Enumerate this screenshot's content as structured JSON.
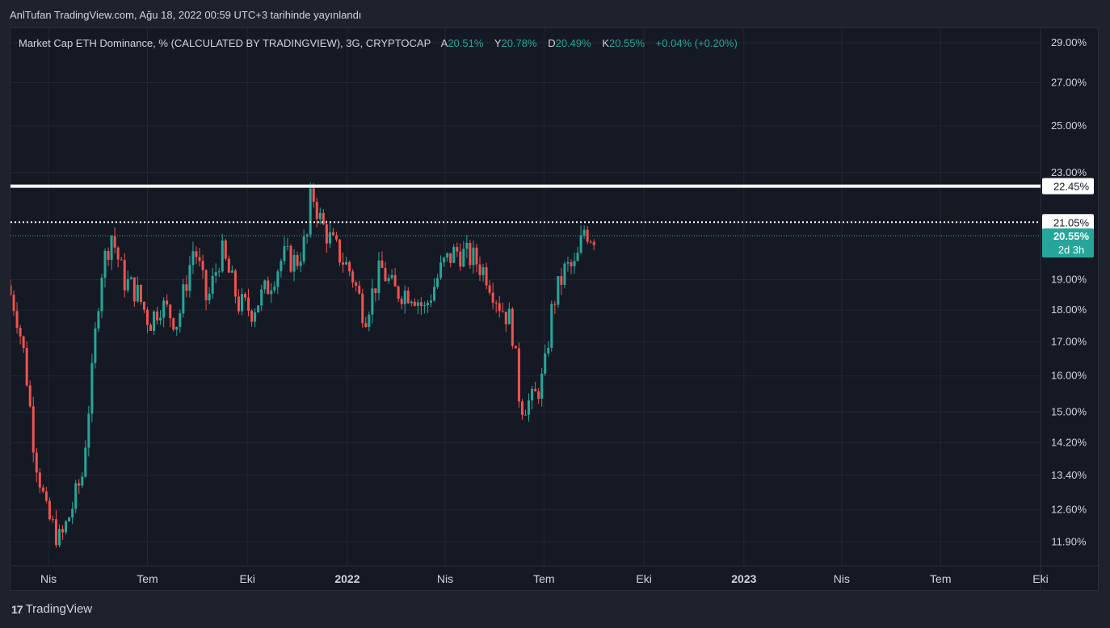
{
  "header": {
    "publish_text": "AnlTufan TradingView.com, Ağu 18, 2022 00:59 UTC+3 tarihinde yayınlandı"
  },
  "legend": {
    "symbol_text": "Market Cap ETH Dominance, % (CALCULATED BY TRADINGVIEW), 3G, CRYPTOCAP",
    "open_label": "A",
    "open_value": "20.51%",
    "high_label": "Y",
    "high_value": "20.78%",
    "low_label": "D",
    "low_value": "20.49%",
    "close_label": "K",
    "close_value": "20.55%",
    "change_text": "+0.04% (+0.20%)"
  },
  "footer": {
    "logo_text": "17",
    "brand_name": "TradingView"
  },
  "colors": {
    "up": "#26a69a",
    "down": "#ef5350",
    "background": "#151924",
    "grid": "#232734",
    "axis_text": "#d1d4dc",
    "price_label_bg": "#26a69a"
  },
  "chart_data": {
    "type": "candlestick",
    "symbol": "Market Cap ETH Dominance, % (CALCULATED BY TRADINGVIEW), 3G, CRYPTOCAP",
    "interval": "3G",
    "y_scale": "log",
    "grid": true,
    "ylim": [
      11.5,
      29.5
    ],
    "y_ticks": [
      "29.00%",
      "27.00%",
      "25.00%",
      "23.00%",
      "19.00%",
      "18.00%",
      "17.00%",
      "16.00%",
      "15.00%",
      "14.20%",
      "13.40%",
      "12.60%",
      "11.90%"
    ],
    "x_ticks": [
      "Nis",
      "Tem",
      "Eki",
      "2022",
      "Nis",
      "Tem",
      "Eki",
      "2023",
      "Nis",
      "Tem",
      "Eki"
    ],
    "x_ticks_bold": [
      "2022",
      "2023"
    ],
    "x_range": [
      "2021-02-25",
      "2023-10-01"
    ],
    "horizontal_lines": [
      {
        "value": 22.45,
        "label": "22.45%",
        "style": "solid"
      },
      {
        "value": 21.05,
        "label": "21.05%",
        "style": "dotted"
      }
    ],
    "last_price": {
      "value": 20.55,
      "label": "20.55%",
      "countdown": "2d 3h"
    },
    "anchors": [
      [
        "2021-02-25",
        18.8
      ],
      [
        "2021-03-05",
        18.0
      ],
      [
        "2021-03-13",
        16.5
      ],
      [
        "2021-03-22",
        14.0
      ],
      [
        "2021-04-02",
        12.5
      ],
      [
        "2021-04-15",
        11.9
      ],
      [
        "2021-04-25",
        12.6
      ],
      [
        "2021-05-05",
        13.4
      ],
      [
        "2021-05-14",
        16.0
      ],
      [
        "2021-05-22",
        19.2
      ],
      [
        "2021-06-01",
        20.6
      ],
      [
        "2021-06-12",
        19.0
      ],
      [
        "2021-06-24",
        18.6
      ],
      [
        "2021-07-06",
        17.6
      ],
      [
        "2021-07-16",
        18.2
      ],
      [
        "2021-08-01",
        17.6
      ],
      [
        "2021-08-16",
        20.2
      ],
      [
        "2021-08-28",
        18.2
      ],
      [
        "2021-09-10",
        20.0
      ],
      [
        "2021-09-26",
        18.2
      ],
      [
        "2021-10-08",
        18.0
      ],
      [
        "2021-10-22",
        18.7
      ],
      [
        "2021-11-06",
        19.8
      ],
      [
        "2021-11-18",
        19.6
      ],
      [
        "2021-11-28",
        20.5
      ],
      [
        "2021-12-02",
        22.3
      ],
      [
        "2021-12-11",
        21.0
      ],
      [
        "2021-12-22",
        20.2
      ],
      [
        "2022-01-08",
        19.2
      ],
      [
        "2022-01-20",
        17.8
      ],
      [
        "2022-02-04",
        19.4
      ],
      [
        "2022-02-16",
        18.6
      ],
      [
        "2022-03-05",
        18.6
      ],
      [
        "2022-03-16",
        18.0
      ],
      [
        "2022-04-02",
        19.5
      ],
      [
        "2022-04-14",
        20.0
      ],
      [
        "2022-05-01",
        19.7
      ],
      [
        "2022-05-12",
        19.2
      ],
      [
        "2022-05-24",
        18.2
      ],
      [
        "2022-06-04",
        17.6
      ],
      [
        "2022-06-12",
        15.2
      ],
      [
        "2022-06-24",
        15.3
      ],
      [
        "2022-07-04",
        16.0
      ],
      [
        "2022-07-12",
        18.2
      ],
      [
        "2022-07-24",
        19.4
      ],
      [
        "2022-08-02",
        19.4
      ],
      [
        "2022-08-10",
        20.8
      ],
      [
        "2022-08-17",
        20.55
      ]
    ]
  }
}
